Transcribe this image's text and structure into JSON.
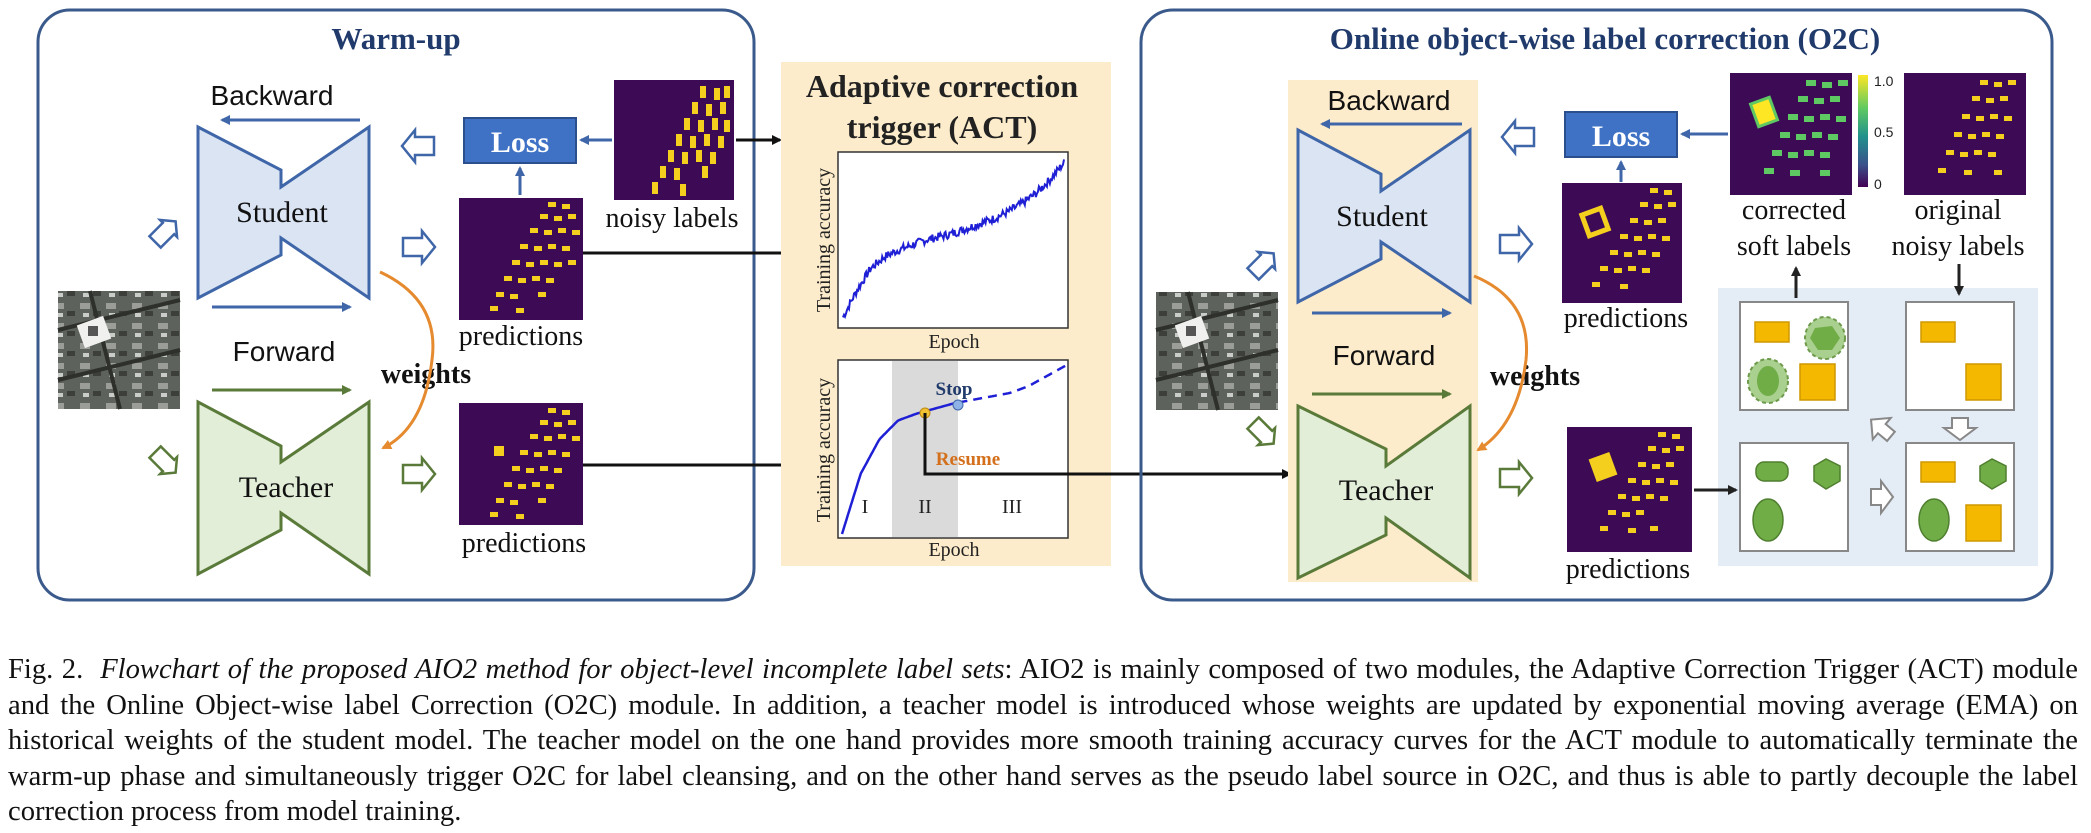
{
  "colors": {
    "panel_border": "#3a5a8c",
    "title": "#1f3a6b",
    "arrow_blue": "#3f66a8",
    "arrow_green": "#5a7a3a",
    "student_fill": "#dbe4f3",
    "teacher_fill": "#e2eed8",
    "act_bg": "#fdeccb",
    "loss_fill": "#3f72c4",
    "orange": "#e58a2e",
    "map_bg": "#3d0a55",
    "map_fg": "#f5cf1e"
  },
  "warmup": {
    "title": "Warm-up",
    "backward": "Backward",
    "forward": "Forward",
    "student": "Student",
    "teacher": "Teacher",
    "weights": "weights",
    "loss": "Loss",
    "noisy_labels": "noisy labels",
    "predictions_top": "predictions",
    "predictions_bottom": "predictions"
  },
  "act": {
    "title_line1": "Adaptive correction",
    "title_line2": "trigger (ACT)",
    "plot1": {
      "ylabel": "Training  accuracy",
      "xlabel": "Epoch"
    },
    "plot2": {
      "ylabel": "Training  accuracy",
      "xlabel": "Epoch",
      "stop": "Stop",
      "resume": "Resume",
      "phases": [
        "I",
        "II",
        "III"
      ]
    }
  },
  "o2c": {
    "title": "Online object-wise label correction (O2C)",
    "backward": "Backward",
    "forward": "Forward",
    "student": "Student",
    "teacher": "Teacher",
    "weights": "weights",
    "loss": "Loss",
    "predictions_top": "predictions",
    "predictions_bottom": "predictions",
    "corrected_line1": "corrected",
    "corrected_line2": "soft labels",
    "original_line1": "original",
    "original_line2": "noisy labels",
    "colorbar_ticks": [
      "1.0",
      "0.5",
      "0"
    ]
  },
  "chart_data": [
    {
      "type": "line",
      "title": "",
      "xlabel": "Epoch",
      "ylabel": "Training  accuracy",
      "series": [
        {
          "values": [
            0.04,
            0.2,
            0.33,
            0.4,
            0.44,
            0.47,
            0.5,
            0.52,
            0.54,
            0.57,
            0.6,
            0.63,
            0.67,
            0.72,
            0.78,
            0.86,
            0.96
          ]
        }
      ]
    },
    {
      "type": "line",
      "title": "",
      "xlabel": "Epoch",
      "ylabel": "Training  accuracy",
      "phases": [
        "I",
        "II",
        "III"
      ],
      "annotations": [
        "Stop",
        "Resume"
      ],
      "series": [
        {
          "values": [
            0.0,
            0.35,
            0.55,
            0.66,
            0.7,
            0.73,
            0.76,
            0.78,
            0.8,
            0.82,
            0.86,
            0.92,
            0.98
          ]
        }
      ]
    }
  ],
  "caption": {
    "label": "Fig. 2.",
    "title": "Flowchart of the proposed AIO2 method for object-level incomplete label sets",
    "text": ": AIO2 is mainly composed of two modules, the Adaptive Correction Trigger (ACT) module and the Online Object-wise label Correction (O2C) module. In addition, a teacher model is introduced whose weights are updated by exponential moving average (EMA) on historical weights of the student model. The teacher model on the one hand provides more smooth training accuracy curves for the ACT module to automatically terminate the warm-up phase and simultaneously trigger O2C for label cleansing, and on the other hand serves as the pseudo label source in O2C, and thus is able to partly decouple the label correction process from model training."
  }
}
